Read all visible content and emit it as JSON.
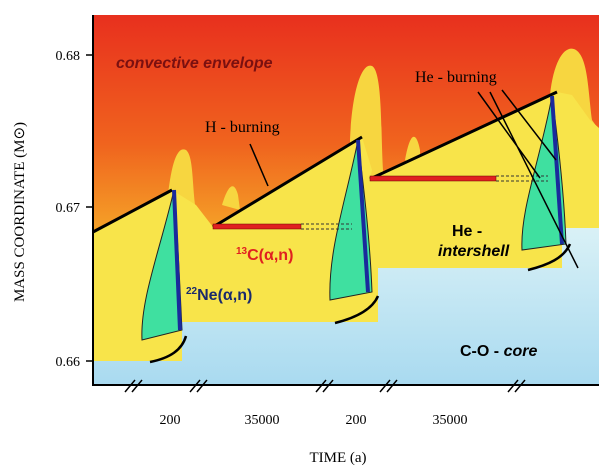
{
  "y_axis": {
    "label": "MASS COORDINATE (M⊙)",
    "ticks": [
      "0.68",
      "0.67",
      "0.66"
    ]
  },
  "x_axis": {
    "label": "TIME (a)",
    "segments": [
      "200",
      "35000",
      "200",
      "35000"
    ]
  },
  "regions": {
    "envelope": "convective envelope",
    "intershell": {
      "line1": "He -",
      "line2": "intershell"
    },
    "core": {
      "prefix": "C-O -",
      "suffix": "core"
    }
  },
  "labels": {
    "h_burning": "H - burning",
    "he_burning": "He - burning",
    "c13": {
      "mass": "13",
      "reaction": "C(α,n)"
    },
    "ne22": {
      "mass": "22",
      "reaction": "Ne(α,n)"
    }
  }
}
